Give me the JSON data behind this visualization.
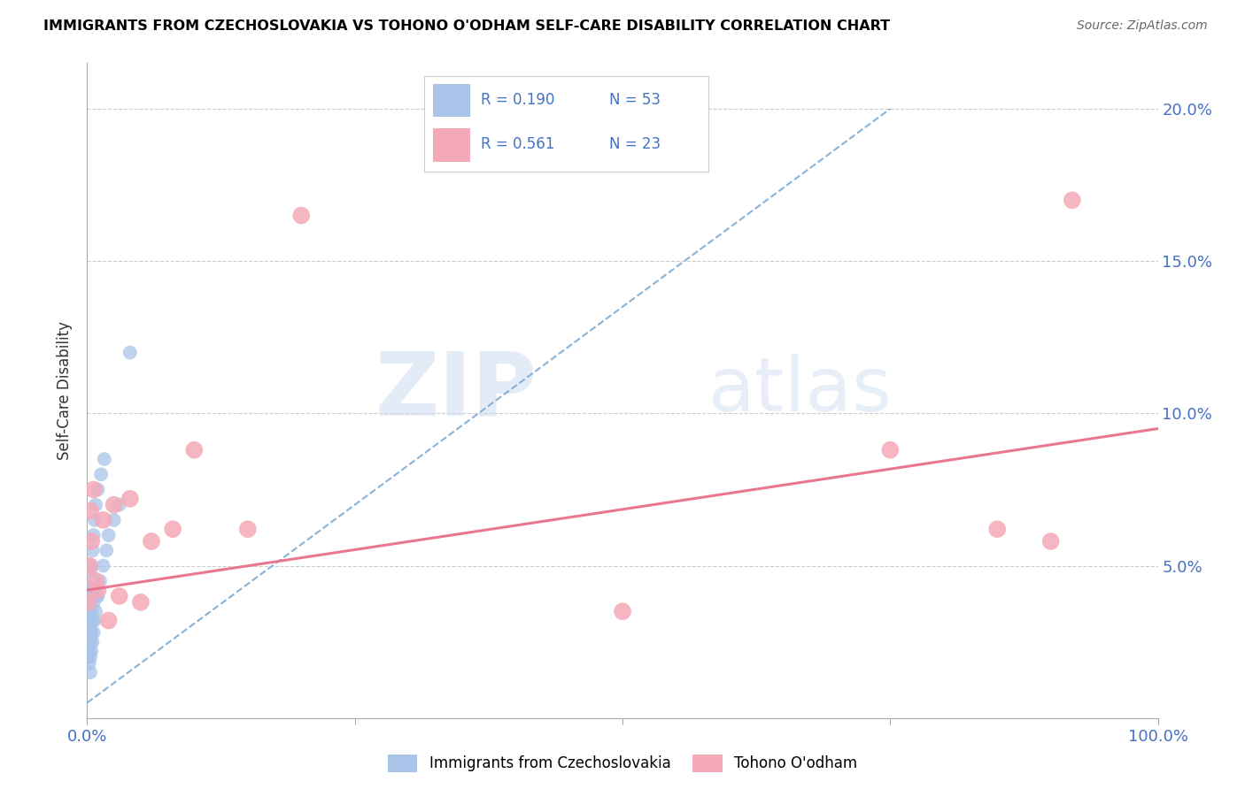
{
  "title": "IMMIGRANTS FROM CZECHOSLOVAKIA VS TOHONO O'ODHAM SELF-CARE DISABILITY CORRELATION CHART",
  "source": "Source: ZipAtlas.com",
  "ylabel": "Self-Care Disability",
  "xlim": [
    0,
    1.0
  ],
  "ylim": [
    0,
    0.215
  ],
  "yticks": [
    0.0,
    0.05,
    0.1,
    0.15,
    0.2
  ],
  "ytick_labels": [
    "",
    "5.0%",
    "10.0%",
    "15.0%",
    "20.0%"
  ],
  "xticks": [
    0.0,
    0.25,
    0.5,
    0.75,
    1.0
  ],
  "xtick_labels": [
    "0.0%",
    "",
    "",
    "",
    "100.0%"
  ],
  "legend_r1": "R = 0.190",
  "legend_n1": "N = 53",
  "legend_r2": "R = 0.561",
  "legend_n2": "N = 23",
  "blue_color": "#a8c4e8",
  "pink_color": "#f4aab8",
  "blue_line_color": "#7aaad4",
  "pink_line_color": "#e8708a",
  "watermark_zip": "ZIP",
  "watermark_atlas": "atlas",
  "blue_scatter_x": [
    0.001,
    0.001,
    0.001,
    0.001,
    0.001,
    0.001,
    0.001,
    0.001,
    0.001,
    0.002,
    0.002,
    0.002,
    0.002,
    0.002,
    0.002,
    0.002,
    0.002,
    0.003,
    0.003,
    0.003,
    0.003,
    0.003,
    0.003,
    0.003,
    0.003,
    0.004,
    0.004,
    0.004,
    0.004,
    0.004,
    0.005,
    0.005,
    0.005,
    0.005,
    0.006,
    0.006,
    0.006,
    0.007,
    0.007,
    0.008,
    0.008,
    0.009,
    0.01,
    0.01,
    0.012,
    0.013,
    0.015,
    0.016,
    0.018,
    0.02,
    0.025,
    0.03,
    0.04
  ],
  "blue_scatter_y": [
    0.02,
    0.022,
    0.025,
    0.028,
    0.03,
    0.032,
    0.035,
    0.038,
    0.04,
    0.018,
    0.022,
    0.025,
    0.03,
    0.033,
    0.036,
    0.04,
    0.043,
    0.015,
    0.02,
    0.025,
    0.028,
    0.032,
    0.038,
    0.042,
    0.048,
    0.022,
    0.028,
    0.035,
    0.042,
    0.05,
    0.025,
    0.032,
    0.04,
    0.055,
    0.028,
    0.038,
    0.06,
    0.032,
    0.065,
    0.035,
    0.07,
    0.04,
    0.04,
    0.075,
    0.045,
    0.08,
    0.05,
    0.085,
    0.055,
    0.06,
    0.065,
    0.07,
    0.12
  ],
  "pink_scatter_x": [
    0.001,
    0.002,
    0.003,
    0.004,
    0.006,
    0.008,
    0.01,
    0.015,
    0.02,
    0.025,
    0.03,
    0.04,
    0.05,
    0.06,
    0.08,
    0.1,
    0.15,
    0.2,
    0.5,
    0.75,
    0.85,
    0.9,
    0.92
  ],
  "pink_scatter_y": [
    0.038,
    0.05,
    0.068,
    0.058,
    0.075,
    0.045,
    0.042,
    0.065,
    0.032,
    0.07,
    0.04,
    0.072,
    0.038,
    0.058,
    0.062,
    0.088,
    0.062,
    0.165,
    0.035,
    0.088,
    0.062,
    0.058,
    0.17
  ],
  "blue_trend_x": [
    0.0,
    0.75
  ],
  "blue_trend_y": [
    0.005,
    0.2
  ],
  "pink_trend_x": [
    0.0,
    1.0
  ],
  "pink_trend_y": [
    0.042,
    0.095
  ]
}
